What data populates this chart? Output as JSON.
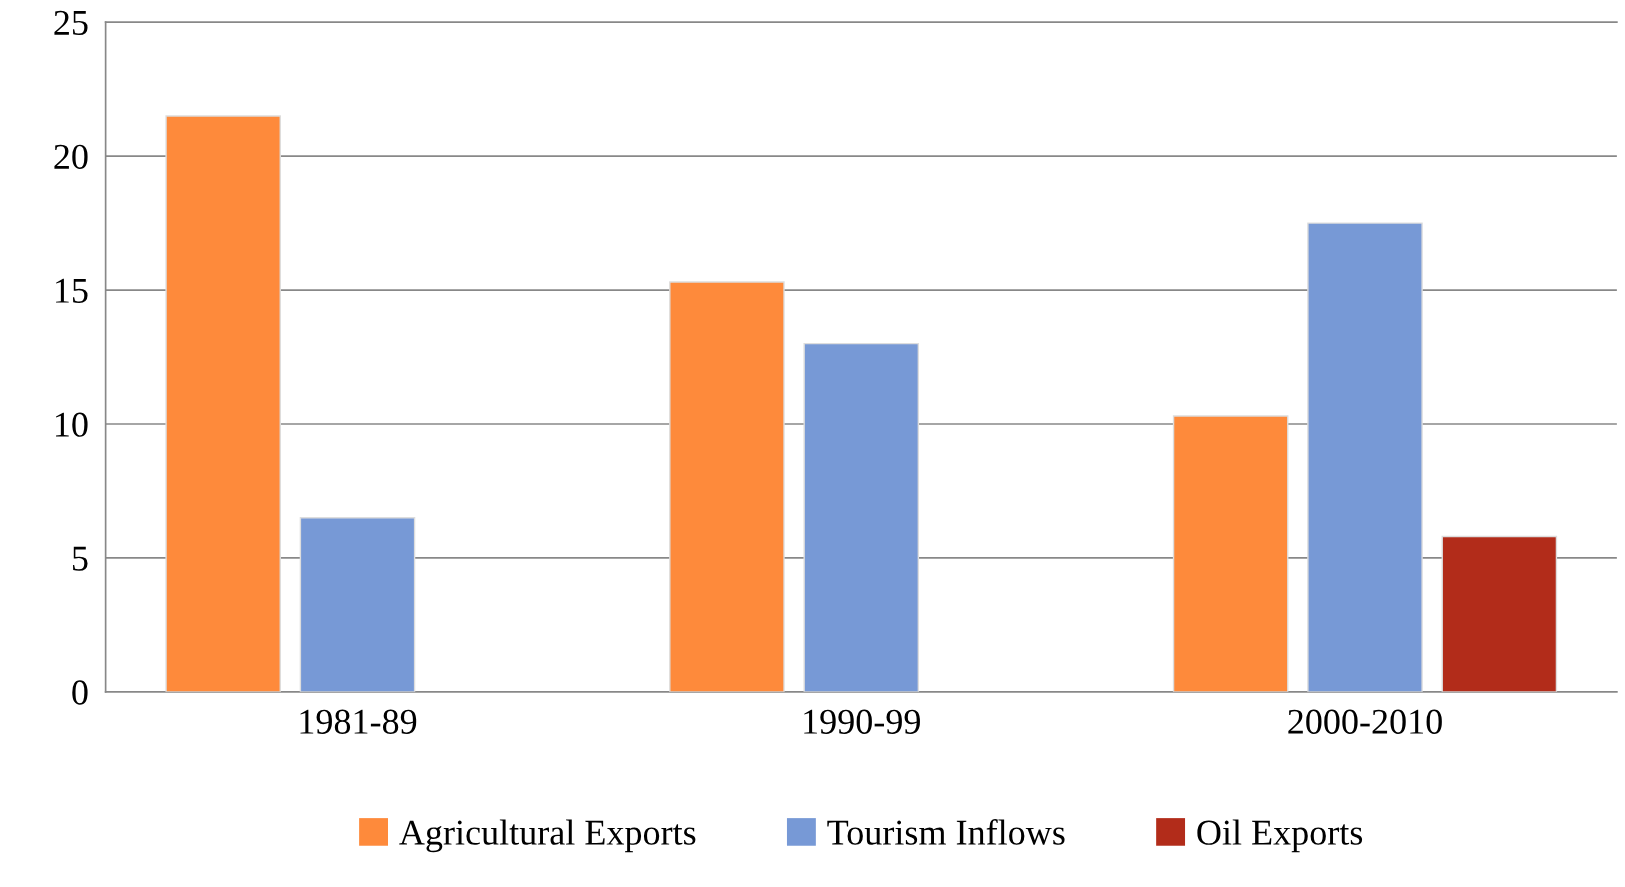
{
  "chart_data": {
    "type": "bar",
    "categories": [
      "1981-89",
      "1990-99",
      "2000-2010"
    ],
    "series": [
      {
        "name": "Agricultural Exports",
        "color": "#fe8a3b",
        "values": [
          21.5,
          15.3,
          10.3
        ]
      },
      {
        "name": "Tourism Inflows",
        "color": "#7799d6",
        "values": [
          6.5,
          13.0,
          17.5
        ]
      },
      {
        "name": "Oil Exports",
        "color": "#b22c1a",
        "values": [
          null,
          null,
          5.8
        ]
      }
    ],
    "ylim": [
      0,
      25
    ],
    "yticks": [
      0,
      5,
      10,
      15,
      20,
      25
    ],
    "grid": "y",
    "legend": "bottom"
  }
}
